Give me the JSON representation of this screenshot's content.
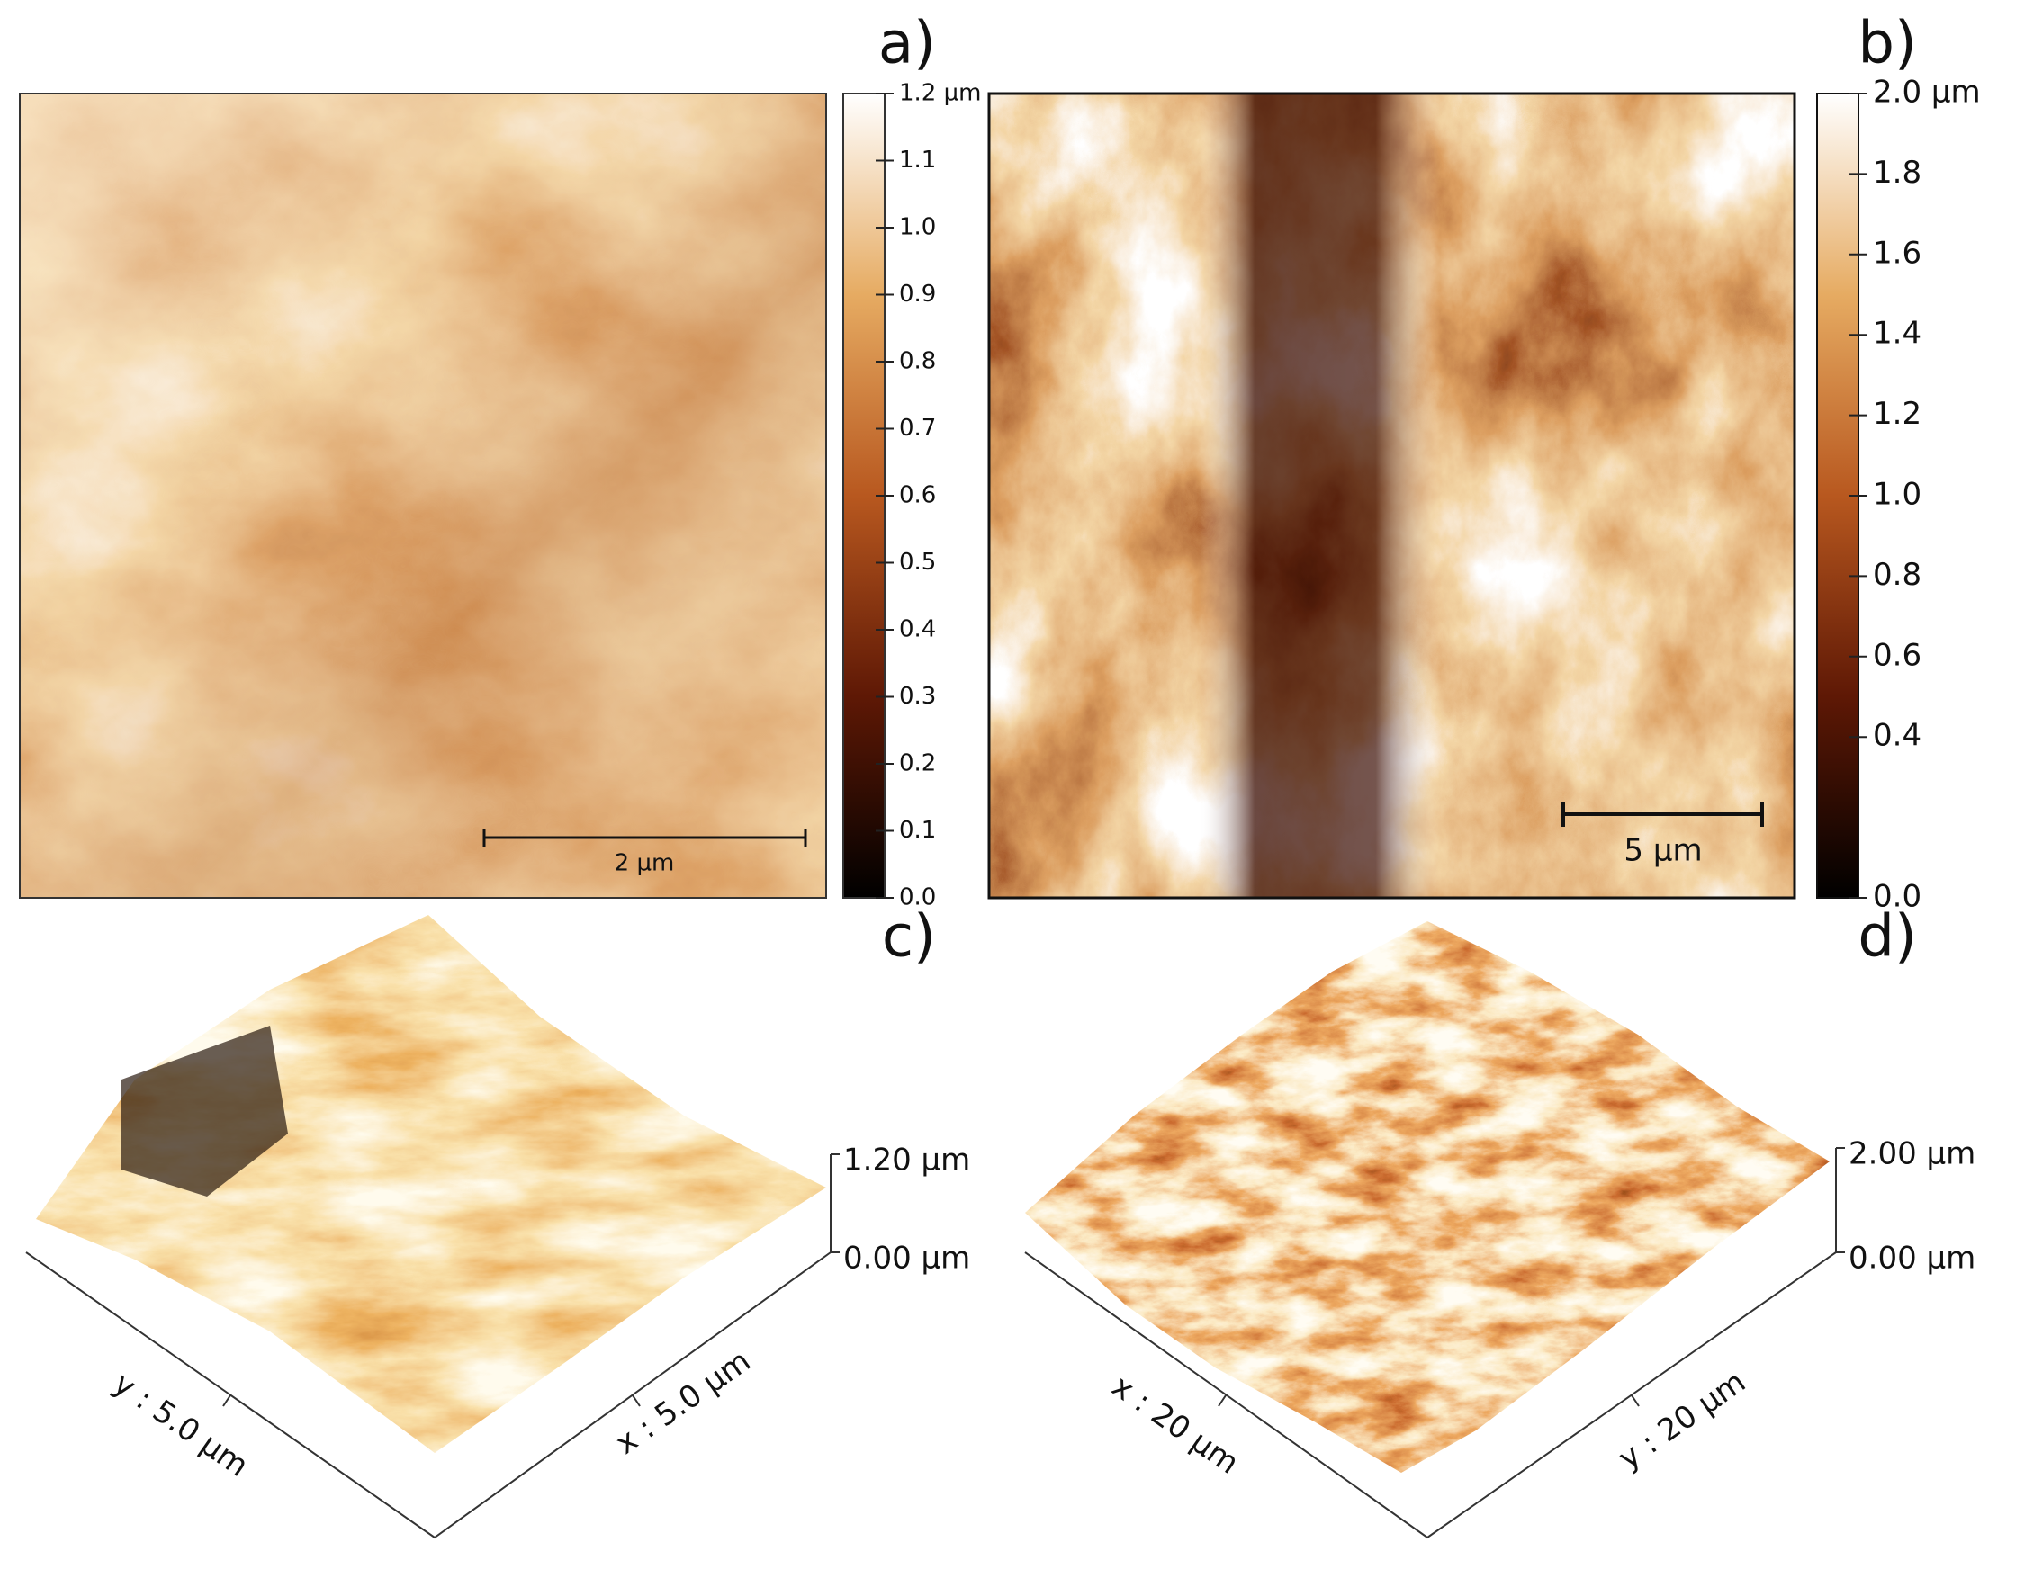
{
  "panels": [
    {
      "label": "a)",
      "colorbar": {
        "range": [
          0,
          1.2
        ],
        "ticks": [
          {
            "value": 1.2,
            "label": "1.2 µm"
          },
          {
            "value": 1.1,
            "label": "1.1"
          },
          {
            "value": 1.0,
            "label": "1.0"
          },
          {
            "value": 0.9,
            "label": "0.9"
          },
          {
            "value": 0.8,
            "label": "0.8"
          },
          {
            "value": 0.7,
            "label": "0.7"
          },
          {
            "value": 0.6,
            "label": "0.6"
          },
          {
            "value": 0.5,
            "label": "0.5"
          },
          {
            "value": 0.4,
            "label": "0.4"
          },
          {
            "value": 0.3,
            "label": "0.3"
          },
          {
            "value": 0.2,
            "label": "0.2"
          },
          {
            "value": 0.1,
            "label": "0.1"
          },
          {
            "value": 0,
            "label": "0.0"
          }
        ]
      },
      "scale_bar": "2 µm"
    },
    {
      "label": "b)",
      "colorbar": {
        "range": [
          0,
          2.0
        ],
        "ticks": [
          {
            "value": 2.0,
            "label": "2.0 µm"
          },
          {
            "value": 1.8,
            "label": "1.8"
          },
          {
            "value": 1.6,
            "label": "1.6"
          },
          {
            "value": 1.4,
            "label": "1.4"
          },
          {
            "value": 1.2,
            "label": "1.2"
          },
          {
            "value": 1.0,
            "label": "1.0"
          },
          {
            "value": 0.8,
            "label": "0.8"
          },
          {
            "value": 0.6,
            "label": "0.6"
          },
          {
            "value": 0.4,
            "label": "0.4"
          },
          {
            "value": 0,
            "label": "0.0"
          }
        ]
      },
      "scale_bar": "5 µm"
    },
    {
      "label": "c)",
      "z_axis": {
        "range": [
          0,
          1.2
        ],
        "ticks": [
          {
            "value": 1.2,
            "label": "1.20 µm"
          },
          {
            "value": 0,
            "label": "0.00 µm"
          }
        ]
      },
      "x_axis": "x : 5.0 µm",
      "y_axis": "y : 5.0 µm"
    },
    {
      "label": "d)",
      "z_axis": {
        "range": [
          0,
          2.0
        ],
        "ticks": [
          {
            "value": 2.0,
            "label": "2.00 µm"
          },
          {
            "value": 0,
            "label": "0.00 µm"
          }
        ]
      },
      "x_axis": "x : 20 µm",
      "y_axis": "y : 20 µm"
    }
  ]
}
